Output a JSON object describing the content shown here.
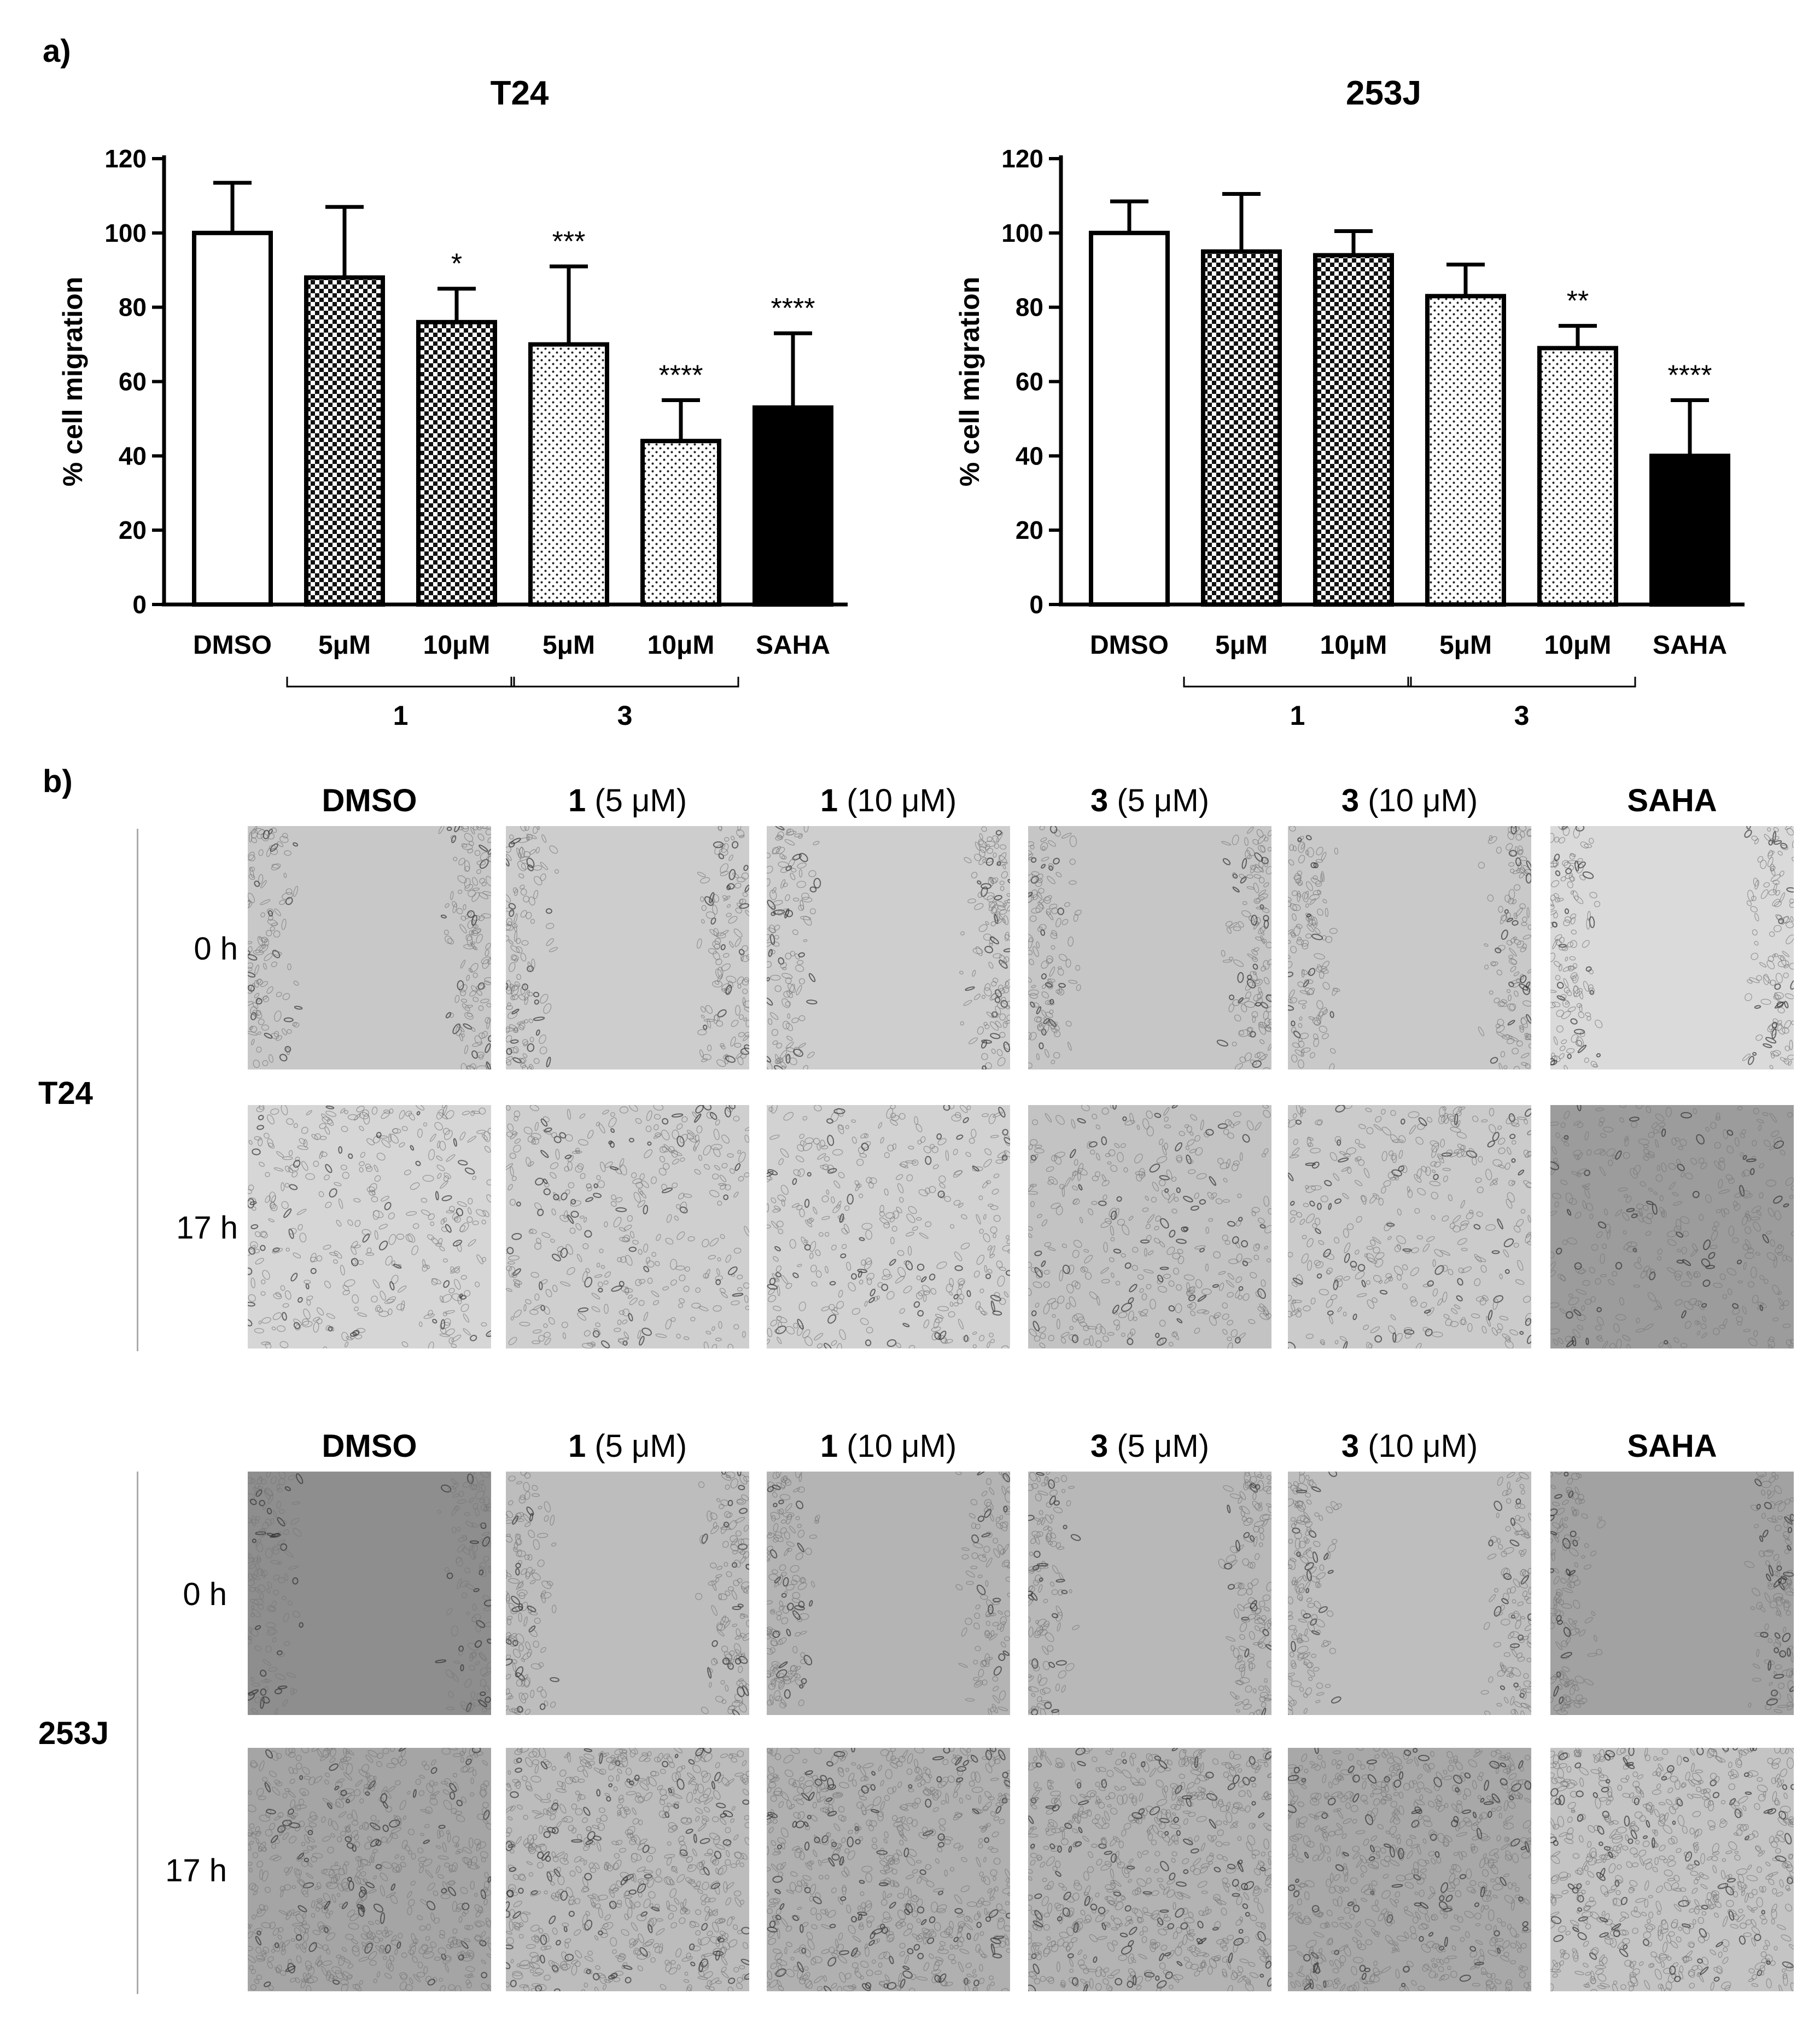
{
  "panels": {
    "a": "a)",
    "b": "b)"
  },
  "chart_data": [
    {
      "type": "bar",
      "title": "T24",
      "ylabel": "% cell migration",
      "ylim": [
        0,
        120
      ],
      "yticks": [
        "0",
        "20",
        "40",
        "60",
        "80",
        "100",
        "120"
      ],
      "categories": [
        "DMSO",
        "5μM",
        "10μM",
        "5μM",
        "10μM",
        "SAHA"
      ],
      "values": [
        100,
        88,
        76,
        70,
        44,
        53
      ],
      "errors": [
        13.5,
        19,
        9,
        21,
        11,
        20
      ],
      "annotations": [
        "",
        "",
        "*",
        "***",
        "****",
        "****"
      ],
      "fills": [
        "white",
        "checker",
        "checker",
        "dots",
        "dots",
        "black"
      ],
      "groups": [
        {
          "label": "1",
          "from": 1,
          "to": 2
        },
        {
          "label": "3",
          "from": 3,
          "to": 4
        }
      ]
    },
    {
      "type": "bar",
      "title": "253J",
      "ylabel": "% cell migration",
      "ylim": [
        0,
        120
      ],
      "yticks": [
        "0",
        "20",
        "40",
        "60",
        "80",
        "100",
        "120"
      ],
      "categories": [
        "DMSO",
        "5μM",
        "10μM",
        "5μM",
        "10μM",
        "SAHA"
      ],
      "values": [
        100,
        95,
        94,
        83,
        69,
        40
      ],
      "errors": [
        8.5,
        15.5,
        6.5,
        8.5,
        6,
        15
      ],
      "annotations": [
        "",
        "",
        "",
        "",
        "**",
        "****"
      ],
      "fills": [
        "white",
        "checker",
        "checker",
        "dots",
        "dots",
        "black"
      ],
      "groups": [
        {
          "label": "1",
          "from": 1,
          "to": 2
        },
        {
          "label": "3",
          "from": 3,
          "to": 4
        }
      ]
    }
  ],
  "micrographs": {
    "columns": [
      {
        "compound": "",
        "text": "DMSO"
      },
      {
        "compound": "1",
        "text": " (5 μM)"
      },
      {
        "compound": "1",
        "text": " (10 μM)"
      },
      {
        "compound": "3",
        "text": " (5 μM)"
      },
      {
        "compound": "3",
        "text": " (10 μM)"
      },
      {
        "compound": "",
        "text": "SAHA"
      }
    ],
    "blocks": [
      {
        "cell_line": "T24",
        "times": [
          "0 h",
          "17 h"
        ]
      },
      {
        "cell_line": "253J",
        "times": [
          "0 h",
          "17 h"
        ]
      }
    ]
  }
}
